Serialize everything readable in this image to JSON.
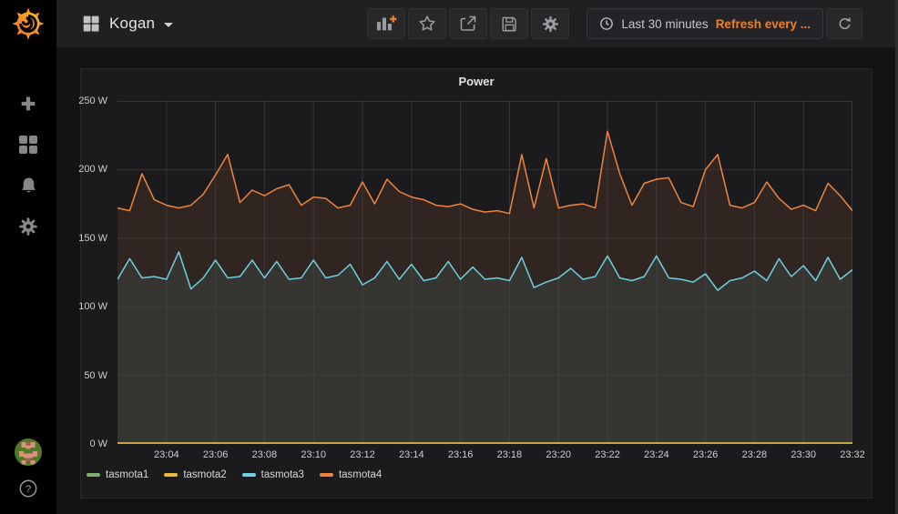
{
  "nav": {
    "dashboard_title": "Kogan",
    "title_icon": "dashboard-grid-icon",
    "toolbar_icons": [
      "add-panel-icon",
      "star-icon",
      "share-icon",
      "save-icon",
      "panel-settings-gear-icon"
    ],
    "timepicker": {
      "clock_icon": "clock-icon",
      "range": "Last 30 minutes",
      "refresh": "Refresh every ...",
      "refresh_icon": "refresh-icon"
    }
  },
  "sidebar": {
    "logo_icon": "grafana-logo",
    "icons": [
      "create-plus-icon",
      "dashboards-icon",
      "alerting-bell-icon",
      "configuration-gear-icon"
    ],
    "bottom_icons": [
      "user-avatar",
      "help-icon"
    ],
    "help_glyph": "?"
  },
  "panel": {
    "title": "Power"
  },
  "colors": {
    "accent_orange": "#ED8128",
    "panel_bg": "#1b1b1e",
    "page_bg": "#131314",
    "grid": "#47474a"
  },
  "chart_data": {
    "type": "line",
    "style": "line-area",
    "title": "Power",
    "y_unit": "W",
    "ylim": [
      0,
      250
    ],
    "y_ticks": [
      0,
      50,
      100,
      150,
      200,
      250
    ],
    "y_tick_labels": [
      "0 W",
      "50 W",
      "100 W",
      "150 W",
      "200 W",
      "250 W"
    ],
    "x_domain_minutes_after_2300": [
      2,
      32
    ],
    "x_start": "23:02",
    "x_end": "23:32",
    "x_interval_seconds": 30,
    "x_ticks": [
      4,
      6,
      8,
      10,
      12,
      14,
      16,
      18,
      20,
      22,
      24,
      26,
      28,
      30,
      32
    ],
    "x_tick_labels": [
      "23:04",
      "23:06",
      "23:08",
      "23:10",
      "23:12",
      "23:14",
      "23:16",
      "23:18",
      "23:20",
      "23:22",
      "23:24",
      "23:26",
      "23:28",
      "23:30",
      "23:32"
    ],
    "grid": true,
    "legend_position": "bottom",
    "fill_opacity": 0.1,
    "series": [
      {
        "name": "tasmota1",
        "color": "#7EB26D",
        "values": [
          0,
          0,
          0,
          0,
          0,
          0,
          0,
          0,
          0,
          0,
          0,
          0,
          0,
          0,
          0,
          0,
          0,
          0,
          0,
          0,
          0,
          0,
          0,
          0,
          0,
          0,
          0,
          0,
          0,
          0,
          0,
          0,
          0,
          0,
          0,
          0,
          0,
          0,
          0,
          0,
          0,
          0,
          0,
          0,
          0,
          0,
          0,
          0,
          0,
          0,
          0,
          0,
          0,
          0,
          0,
          0,
          0,
          0,
          0,
          0,
          0
        ]
      },
      {
        "name": "tasmota2",
        "color": "#EAB839",
        "values": [
          0,
          0,
          0,
          0,
          0,
          0,
          0,
          0,
          0,
          0,
          0,
          0,
          0,
          0,
          0,
          0,
          0,
          0,
          0,
          0,
          0,
          0,
          0,
          0,
          0,
          0,
          0,
          0,
          0,
          0,
          0,
          0,
          0,
          0,
          0,
          0,
          0,
          0,
          0,
          0,
          0,
          0,
          0,
          0,
          0,
          0,
          0,
          0,
          0,
          0,
          0,
          0,
          0,
          0,
          0,
          0,
          0,
          0,
          0,
          0,
          0
        ]
      },
      {
        "name": "tasmota3",
        "color": "#6ED0E0",
        "values": [
          120,
          135,
          121,
          122,
          120,
          140,
          113,
          121,
          134,
          121,
          122,
          134,
          121,
          133,
          120,
          121,
          134,
          121,
          123,
          131,
          116,
          121,
          133,
          120,
          131,
          119,
          121,
          133,
          120,
          129,
          120,
          121,
          119,
          136,
          114,
          118,
          121,
          128,
          120,
          122,
          137,
          121,
          119,
          122,
          137,
          121,
          120,
          118,
          124,
          112,
          119,
          121,
          126,
          119,
          135,
          122,
          130,
          119,
          136,
          120,
          127
        ]
      },
      {
        "name": "tasmota4",
        "color": "#EF843C",
        "values": [
          172,
          170,
          197,
          178,
          174,
          172,
          174,
          182,
          196,
          211,
          176,
          185,
          181,
          186,
          189,
          174,
          180,
          179,
          172,
          174,
          191,
          175,
          193,
          184,
          180,
          178,
          174,
          173,
          175,
          171,
          169,
          170,
          168,
          211,
          172,
          208,
          172,
          174,
          175,
          172,
          228,
          197,
          174,
          190,
          193,
          194,
          176,
          173,
          200,
          211,
          174,
          172,
          176,
          191,
          179,
          171,
          174,
          170,
          190,
          181,
          170
        ]
      }
    ]
  }
}
